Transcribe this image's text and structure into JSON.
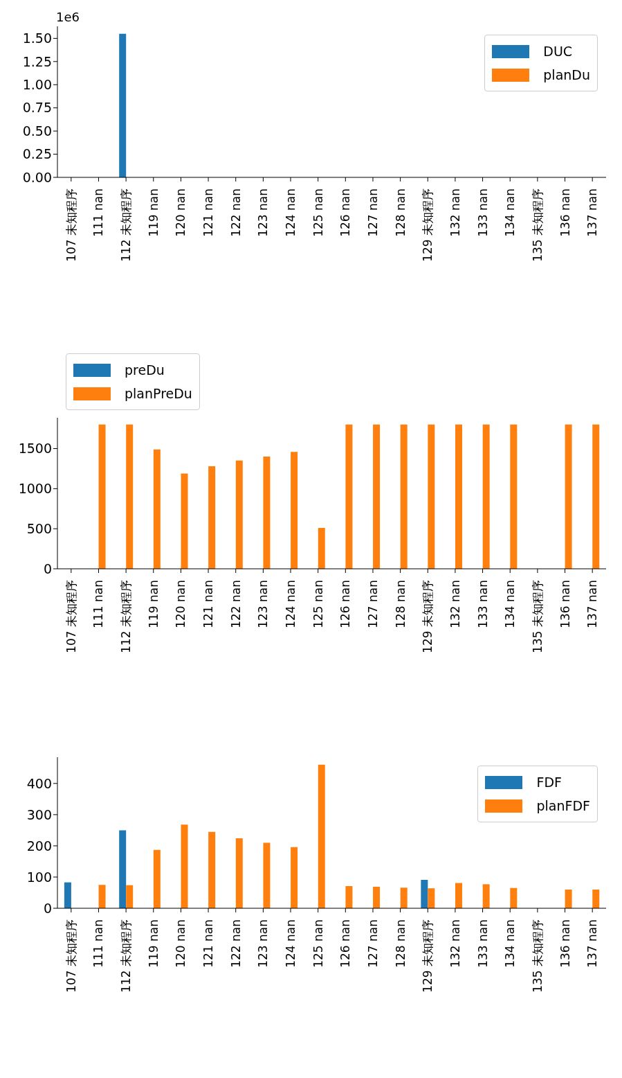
{
  "chart_data": [
    {
      "type": "bar",
      "categories": [
        "107 未知程序",
        "111 nan",
        "112 未知程序",
        "119 nan",
        "120 nan",
        "121 nan",
        "122 nan",
        "123 nan",
        "124 nan",
        "125 nan",
        "126 nan",
        "127 nan",
        "128 nan",
        "129 未知程序",
        "132 nan",
        "133 nan",
        "134 nan",
        "135 未知程序",
        "136 nan",
        "137 nan"
      ],
      "series": [
        {
          "name": "DUC",
          "color": "#1f77b4",
          "values": [
            null,
            null,
            1.55,
            null,
            null,
            null,
            null,
            null,
            null,
            null,
            null,
            null,
            null,
            null,
            null,
            null,
            null,
            null,
            null,
            null
          ]
        },
        {
          "name": "planDu",
          "color": "#ff7f0e",
          "values": [
            null,
            0,
            0,
            0,
            0,
            0,
            0,
            0,
            0,
            0,
            0,
            0,
            0,
            0,
            0,
            0,
            0,
            null,
            0,
            0
          ]
        }
      ],
      "ylim": [
        0,
        1.63
      ],
      "yticks": [
        {
          "value": 0,
          "label": "0.00"
        },
        {
          "value": 0.25,
          "label": "0.25"
        },
        {
          "value": 0.5,
          "label": "0.50"
        },
        {
          "value": 0.75,
          "label": "0.75"
        },
        {
          "value": 1,
          "label": "1.00"
        },
        {
          "value": 1.25,
          "label": "1.25"
        },
        {
          "value": 1.5,
          "label": "1.50"
        }
      ],
      "annotations": [
        "1e6"
      ],
      "legend": "top right",
      "grid": false
    },
    {
      "type": "bar",
      "categories": [
        "107 未知程序",
        "111 nan",
        "112 未知程序",
        "119 nan",
        "120 nan",
        "121 nan",
        "122 nan",
        "123 nan",
        "124 nan",
        "125 nan",
        "126 nan",
        "127 nan",
        "128 nan",
        "129 未知程序",
        "132 nan",
        "133 nan",
        "134 nan",
        "135 未知程序",
        "136 nan",
        "137 nan"
      ],
      "series": [
        {
          "name": "preDu",
          "color": "#1f77b4",
          "values": [
            null,
            null,
            null,
            null,
            null,
            null,
            null,
            null,
            null,
            null,
            null,
            null,
            null,
            null,
            null,
            null,
            null,
            null,
            null,
            null
          ]
        },
        {
          "name": "planPreDu",
          "color": "#ff7f0e",
          "values": [
            null,
            1800,
            1800,
            1490,
            1190,
            1280,
            1350,
            1400,
            1460,
            510,
            1800,
            1800,
            1800,
            1800,
            1800,
            1800,
            1800,
            null,
            1800,
            1800
          ]
        }
      ],
      "ylim": [
        0,
        1885
      ],
      "yticks": [
        0,
        500,
        1000,
        1500
      ],
      "legend": "top left",
      "grid": false
    },
    {
      "type": "bar",
      "categories": [
        "107 未知程序",
        "111 nan",
        "112 未知程序",
        "119 nan",
        "120 nan",
        "121 nan",
        "122 nan",
        "123 nan",
        "124 nan",
        "125 nan",
        "126 nan",
        "127 nan",
        "128 nan",
        "129 未知程序",
        "132 nan",
        "133 nan",
        "134 nan",
        "135 未知程序",
        "136 nan",
        "137 nan"
      ],
      "series": [
        {
          "name": "FDF",
          "color": "#1f77b4",
          "values": [
            83,
            null,
            250,
            null,
            null,
            null,
            null,
            null,
            null,
            null,
            null,
            null,
            null,
            91,
            null,
            null,
            null,
            null,
            null,
            null
          ]
        },
        {
          "name": "planFDF",
          "color": "#ff7f0e",
          "values": [
            null,
            75,
            74,
            187,
            268,
            245,
            224,
            210,
            196,
            460,
            71,
            69,
            66,
            64,
            81,
            77,
            65,
            null,
            60,
            60
          ]
        }
      ],
      "ylim": [
        0,
        484
      ],
      "yticks": [
        0,
        100,
        200,
        300,
        400
      ],
      "legend": "top right",
      "grid": false
    }
  ]
}
